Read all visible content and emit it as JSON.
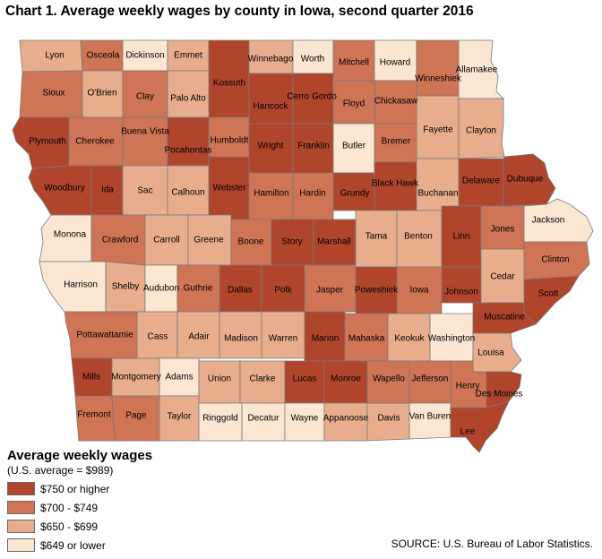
{
  "title": "Chart 1. Average weekly wages by county in Iowa, second quarter 2016",
  "legend": {
    "title": "Average weekly wages",
    "subtitle": "(U.S. average = $989)",
    "classes": [
      {
        "label": "$750 or higher",
        "color": "#b0452c"
      },
      {
        "label": "$700 - $749",
        "color": "#cf7454"
      },
      {
        "label": "$650 - $699",
        "color": "#e8ad8d"
      },
      {
        "label": "$649 or lower",
        "color": "#fbe6d2"
      }
    ]
  },
  "source": "SOURCE: U.S. Bureau of Labor Statistics.",
  "counties": [
    {
      "name": "Lyon",
      "class": 2
    },
    {
      "name": "Osceola",
      "class": 1
    },
    {
      "name": "Dickinson",
      "class": 3
    },
    {
      "name": "Emmet",
      "class": 2
    },
    {
      "name": "Kossuth",
      "class": 0
    },
    {
      "name": "Winnebago",
      "class": 2
    },
    {
      "name": "Worth",
      "class": 3
    },
    {
      "name": "Mitchell",
      "class": 1
    },
    {
      "name": "Howard",
      "class": 3
    },
    {
      "name": "Winneshiek",
      "class": 1
    },
    {
      "name": "Allamakee",
      "class": 3
    },
    {
      "name": "Sioux",
      "class": 1
    },
    {
      "name": "O'Brien",
      "class": 2
    },
    {
      "name": "Clay",
      "class": 1
    },
    {
      "name": "Palo Alto",
      "class": 2
    },
    {
      "name": "Hancock",
      "class": 0
    },
    {
      "name": "Cerro Gordo",
      "class": 0
    },
    {
      "name": "Floyd",
      "class": 1
    },
    {
      "name": "Chickasaw",
      "class": 1
    },
    {
      "name": "Plymouth",
      "class": 0
    },
    {
      "name": "Cherokee",
      "class": 1
    },
    {
      "name": "Buena Vista",
      "class": 1
    },
    {
      "name": "Pocahontas",
      "class": 0
    },
    {
      "name": "Humboldt",
      "class": 1
    },
    {
      "name": "Wright",
      "class": 0
    },
    {
      "name": "Franklin",
      "class": 0
    },
    {
      "name": "Butler",
      "class": 3
    },
    {
      "name": "Bremer",
      "class": 1
    },
    {
      "name": "Fayette",
      "class": 2
    },
    {
      "name": "Clayton",
      "class": 2
    },
    {
      "name": "Woodbury",
      "class": 0
    },
    {
      "name": "Ida",
      "class": 0
    },
    {
      "name": "Sac",
      "class": 2
    },
    {
      "name": "Calhoun",
      "class": 2
    },
    {
      "name": "Webster",
      "class": 0
    },
    {
      "name": "Hamilton",
      "class": 1
    },
    {
      "name": "Hardin",
      "class": 1
    },
    {
      "name": "Grundy",
      "class": 0
    },
    {
      "name": "Black Hawk",
      "class": 0
    },
    {
      "name": "Buchanan",
      "class": 2
    },
    {
      "name": "Delaware",
      "class": 0
    },
    {
      "name": "Dubuque",
      "class": 0
    },
    {
      "name": "Monona",
      "class": 3
    },
    {
      "name": "Crawford",
      "class": 1
    },
    {
      "name": "Carroll",
      "class": 2
    },
    {
      "name": "Greene",
      "class": 2
    },
    {
      "name": "Boone",
      "class": 1
    },
    {
      "name": "Story",
      "class": 0
    },
    {
      "name": "Marshall",
      "class": 0
    },
    {
      "name": "Tama",
      "class": 2
    },
    {
      "name": "Benton",
      "class": 2
    },
    {
      "name": "Linn",
      "class": 0
    },
    {
      "name": "Jones",
      "class": 1
    },
    {
      "name": "Jackson",
      "class": 3
    },
    {
      "name": "Harrison",
      "class": 3
    },
    {
      "name": "Shelby",
      "class": 2
    },
    {
      "name": "Audubon",
      "class": 3
    },
    {
      "name": "Guthrie",
      "class": 1
    },
    {
      "name": "Dallas",
      "class": 0
    },
    {
      "name": "Polk",
      "class": 0
    },
    {
      "name": "Jasper",
      "class": 1
    },
    {
      "name": "Poweshiek",
      "class": 0
    },
    {
      "name": "Iowa",
      "class": 1
    },
    {
      "name": "Johnson",
      "class": 0
    },
    {
      "name": "Cedar",
      "class": 2
    },
    {
      "name": "Clinton",
      "class": 1
    },
    {
      "name": "Scott",
      "class": 0
    },
    {
      "name": "Pottawattamie",
      "class": 1
    },
    {
      "name": "Cass",
      "class": 2
    },
    {
      "name": "Adair",
      "class": 2
    },
    {
      "name": "Madison",
      "class": 2
    },
    {
      "name": "Warren",
      "class": 2
    },
    {
      "name": "Marion",
      "class": 0
    },
    {
      "name": "Mahaska",
      "class": 1
    },
    {
      "name": "Keokuk",
      "class": 2
    },
    {
      "name": "Washington",
      "class": 3
    },
    {
      "name": "Muscatine",
      "class": 0
    },
    {
      "name": "Louisa",
      "class": 2
    },
    {
      "name": "Mills",
      "class": 0
    },
    {
      "name": "Montgomery",
      "class": 2
    },
    {
      "name": "Adams",
      "class": 3
    },
    {
      "name": "Union",
      "class": 2
    },
    {
      "name": "Clarke",
      "class": 2
    },
    {
      "name": "Lucas",
      "class": 0
    },
    {
      "name": "Monroe",
      "class": 0
    },
    {
      "name": "Wapello",
      "class": 1
    },
    {
      "name": "Jefferson",
      "class": 1
    },
    {
      "name": "Henry",
      "class": 1
    },
    {
      "name": "Des Moines",
      "class": 0
    },
    {
      "name": "Fremont",
      "class": 1
    },
    {
      "name": "Page",
      "class": 1
    },
    {
      "name": "Taylor",
      "class": 2
    },
    {
      "name": "Ringgold",
      "class": 3
    },
    {
      "name": "Decatur",
      "class": 3
    },
    {
      "name": "Wayne",
      "class": 3
    },
    {
      "name": "Appanoose",
      "class": 2
    },
    {
      "name": "Davis",
      "class": 2
    },
    {
      "name": "Van Buren",
      "class": 3
    },
    {
      "name": "Lee",
      "class": 0
    }
  ]
}
